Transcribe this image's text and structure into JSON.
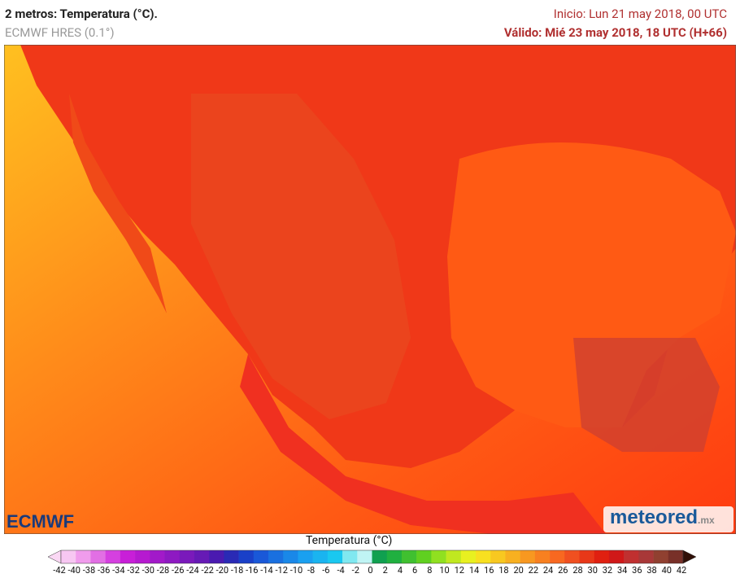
{
  "header": {
    "title": "2 metros: Temperatura (°C).",
    "model": "ECMWF HRES (0.1°)",
    "init": "Inicio: Lun 21 may 2018, 00 UTC",
    "valid": "Válido: Mié 23 may 2018, 18 UTC (H+66)"
  },
  "logos": {
    "left": "ECMWF",
    "right": "meteored",
    "right_suffix": ".mx"
  },
  "colorbar": {
    "title": "Temperatura (°C)",
    "labels": [
      "-42",
      "-40",
      "-38",
      "-36",
      "-34",
      "-32",
      "-30",
      "-28",
      "-26",
      "-24",
      "-22",
      "-20",
      "-18",
      "-16",
      "-14",
      "-12",
      "-10",
      "-8",
      "-6",
      "-4",
      "-2",
      "0",
      "2",
      "4",
      "6",
      "8",
      "10",
      "12",
      "14",
      "16",
      "18",
      "20",
      "22",
      "24",
      "26",
      "28",
      "30",
      "32",
      "34",
      "36",
      "38",
      "40",
      "42"
    ],
    "colors": [
      "#f7c7f2",
      "#f09cec",
      "#e26fe4",
      "#d540e0",
      "#c81fd8",
      "#b61ad0",
      "#a21ac9",
      "#8e1ac2",
      "#7a1abb",
      "#661ab5",
      "#4a1ab0",
      "#2a2ab5",
      "#1a40c8",
      "#1a58d8",
      "#1a70e0",
      "#1a88e8",
      "#1aa0f0",
      "#1ab4f0",
      "#1ac8f0",
      "#80e8f0",
      "#c0f4f4",
      "#10a050",
      "#20b040",
      "#40c030",
      "#60d020",
      "#90e020",
      "#c0e820",
      "#e8f020",
      "#f8e020",
      "#f8c820",
      "#f8b020",
      "#f89820",
      "#f88020",
      "#f86820",
      "#f05020",
      "#e83818",
      "#e02010",
      "#d01818",
      "#c03030",
      "#a83838",
      "#904030",
      "#783028"
    ],
    "low_color": "#fad8f4",
    "high_color": "#301008"
  }
}
